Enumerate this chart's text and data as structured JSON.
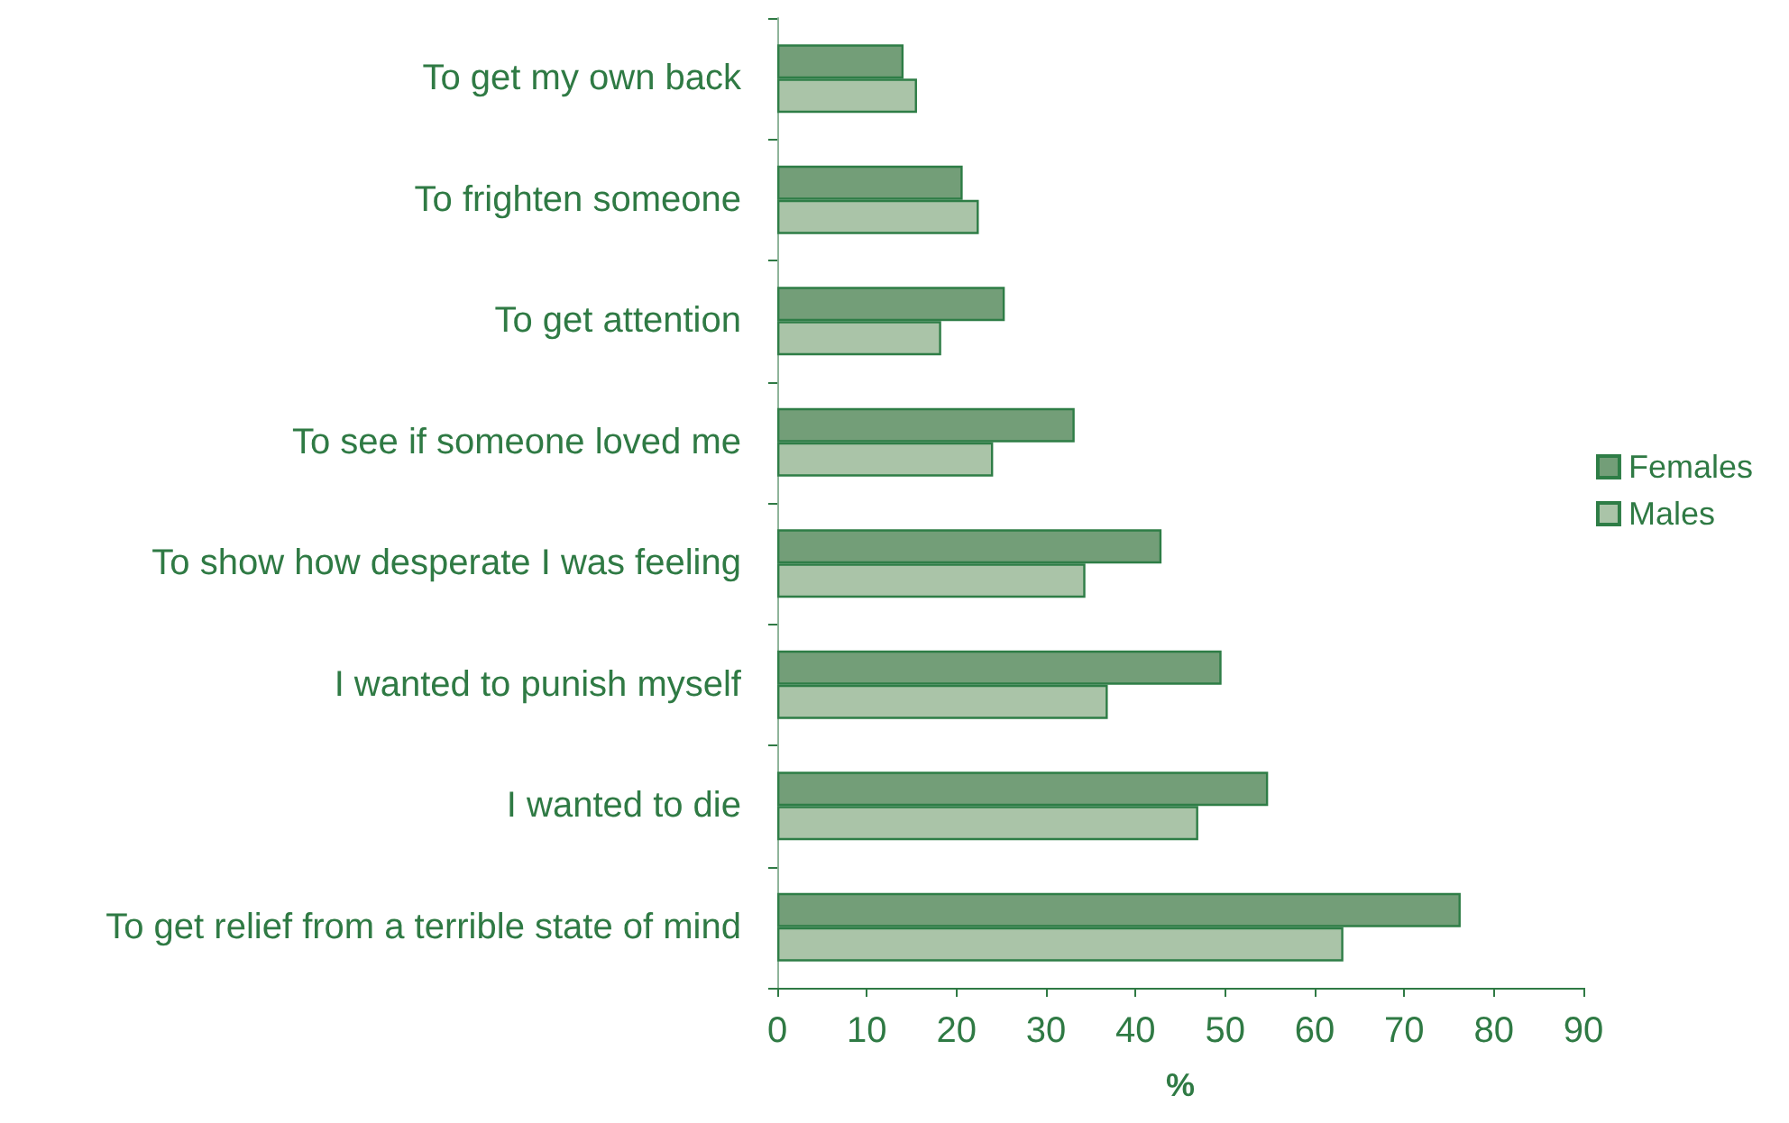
{
  "chart_data": {
    "type": "bar",
    "orientation": "horizontal",
    "xlabel": "%",
    "categories": [
      "To get my own back",
      "To frighten someone",
      "To get attention",
      "To see if someone loved me",
      "To show how desperate I was feeling",
      "I wanted to punish myself",
      "I wanted to die",
      "To get relief from a terrible state of mind"
    ],
    "series": [
      {
        "name": "Females",
        "color": "#739e78",
        "values": [
          14.1,
          20.7,
          25.4,
          33.2,
          42.9,
          49.6,
          54.8,
          76.3
        ]
      },
      {
        "name": "Males",
        "color": "#aac4a8",
        "values": [
          15.6,
          22.5,
          18.3,
          24.1,
          34.4,
          36.9,
          47.0,
          63.2
        ]
      }
    ],
    "xlim": [
      0,
      90
    ],
    "xticks": [
      0,
      10,
      20,
      30,
      40,
      50,
      60,
      70,
      80,
      90
    ],
    "grid": false,
    "legend": "right"
  }
}
